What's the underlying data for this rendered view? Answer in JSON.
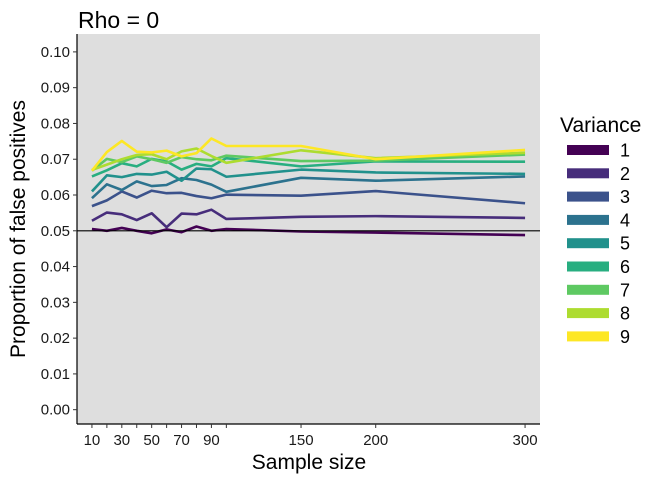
{
  "chart_data": {
    "type": "line",
    "title": "Rho = 0",
    "xlabel": "Sample size",
    "ylabel": "Proportion of false positives",
    "legend_title": "Variance",
    "legend_position": "right",
    "xlim": [
      0,
      310
    ],
    "ylim": [
      -0.004,
      0.105
    ],
    "x_ticks": [
      10,
      30,
      50,
      70,
      90,
      150,
      200,
      300
    ],
    "x_minor_ticks": [
      20,
      40,
      60,
      80,
      100
    ],
    "y_ticks": [
      "0.00",
      "0.01",
      "0.02",
      "0.03",
      "0.04",
      "0.05",
      "0.06",
      "0.07",
      "0.08",
      "0.09",
      "0.10"
    ],
    "hline": 0.05,
    "panel_background": "#dedede",
    "grid": false,
    "x": [
      10,
      20,
      30,
      40,
      50,
      60,
      70,
      80,
      90,
      100,
      150,
      200,
      300
    ],
    "series": [
      {
        "name": "1",
        "color": "#440154",
        "values": [
          0.0505,
          0.05,
          0.0508,
          0.05,
          0.0493,
          0.0504,
          0.0496,
          0.0512,
          0.05,
          0.0505,
          0.0498,
          0.0495,
          0.0488
        ]
      },
      {
        "name": "2",
        "color": "#472d7b",
        "values": [
          0.0528,
          0.0551,
          0.0546,
          0.053,
          0.0549,
          0.051,
          0.0548,
          0.0546,
          0.0559,
          0.0533,
          0.0539,
          0.0541,
          0.0536
        ]
      },
      {
        "name": "3",
        "color": "#3b528b",
        "values": [
          0.0569,
          0.0585,
          0.061,
          0.0593,
          0.0612,
          0.0605,
          0.0606,
          0.0597,
          0.0591,
          0.0601,
          0.0598,
          0.0611,
          0.0577
        ]
      },
      {
        "name": "4",
        "color": "#2c728e",
        "values": [
          0.0591,
          0.063,
          0.0614,
          0.0638,
          0.0625,
          0.0628,
          0.0647,
          0.0642,
          0.0629,
          0.0609,
          0.0648,
          0.064,
          0.0652
        ]
      },
      {
        "name": "5",
        "color": "#21918c",
        "values": [
          0.061,
          0.0655,
          0.065,
          0.0659,
          0.0657,
          0.0665,
          0.064,
          0.0674,
          0.0672,
          0.0651,
          0.0671,
          0.0663,
          0.0659
        ]
      },
      {
        "name": "6",
        "color": "#28ae80",
        "values": [
          0.0652,
          0.0669,
          0.0689,
          0.068,
          0.0701,
          0.0694,
          0.0671,
          0.0687,
          0.068,
          0.0703,
          0.068,
          0.0694,
          0.0693
        ]
      },
      {
        "name": "7",
        "color": "#5ec962",
        "values": [
          0.0668,
          0.0701,
          0.0692,
          0.0708,
          0.07,
          0.069,
          0.0706,
          0.07,
          0.0697,
          0.071,
          0.0695,
          0.0696,
          0.0713
        ]
      },
      {
        "name": "8",
        "color": "#addc30",
        "values": [
          0.067,
          0.0685,
          0.07,
          0.0712,
          0.0714,
          0.07,
          0.0722,
          0.073,
          0.0709,
          0.069,
          0.0725,
          0.0703,
          0.0718
        ]
      },
      {
        "name": "9",
        "color": "#fde725",
        "values": [
          0.0668,
          0.072,
          0.0751,
          0.0721,
          0.0719,
          0.0724,
          0.0708,
          0.0717,
          0.0758,
          0.0737,
          0.0737,
          0.07,
          0.0726
        ]
      }
    ]
  }
}
